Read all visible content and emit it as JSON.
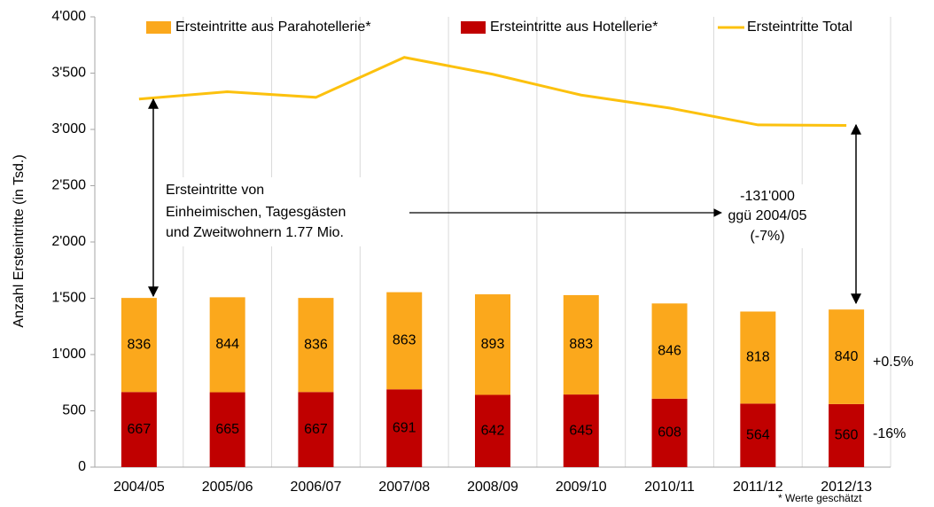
{
  "chart_data": {
    "type": "bar",
    "stacked": true,
    "y_label": "Anzahl Ersteintritte (in Tsd.)",
    "categories": [
      "2004/05",
      "2005/06",
      "2006/07",
      "2007/08",
      "2008/09",
      "2009/10",
      "2010/11",
      "2011/12",
      "2012/13"
    ],
    "series": [
      {
        "name": "Ersteintritte aus Parahotellerie*",
        "color": "#fba81c",
        "values": [
          836,
          844,
          836,
          863,
          893,
          883,
          846,
          818,
          840
        ]
      },
      {
        "name": "Ersteintritte aus Hotellerie*",
        "color": "#c00000",
        "values": [
          667,
          665,
          667,
          691,
          642,
          645,
          608,
          564,
          560
        ]
      },
      {
        "name": "Ersteintritte Total",
        "color": "#fcc10e",
        "type": "line",
        "values": [
          3270,
          3335,
          3285,
          3640,
          3490,
          3305,
          3190,
          3040,
          3035
        ]
      }
    ],
    "ylim": [
      0,
      4000
    ],
    "yticks": [
      0,
      500,
      {
        "value": 1000,
        "label": "1'000"
      },
      {
        "value": 1500,
        "label": "1'500"
      },
      {
        "value": 2000,
        "label": "2'000"
      },
      {
        "value": 2500,
        "label": "2'500"
      },
      {
        "value": 3000,
        "label": "3'000"
      },
      {
        "value": 3500,
        "label": "3'500"
      },
      {
        "value": 4000,
        "label": "4'000"
      }
    ],
    "legend": "top",
    "annotations": {
      "locals": [
        "Ersteintritte von",
        "Einheimischen, Tagesgästen",
        "und Zweitwohnern 1.77 Mio."
      ],
      "change": [
        "-131'000",
        "ggü 2004/05",
        "(-7%)"
      ],
      "para_change": "+0.5%",
      "hotel_change": "-16%",
      "footnote": "* Werte geschätzt"
    }
  }
}
